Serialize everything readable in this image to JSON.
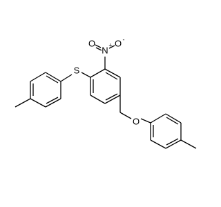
{
  "atoms": [
    {
      "label": "S"
    },
    {
      "label": "N",
      "charge": "+"
    },
    {
      "label": "O"
    },
    {
      "label": "O",
      "charge": "-"
    },
    {
      "label": "O"
    }
  ]
}
